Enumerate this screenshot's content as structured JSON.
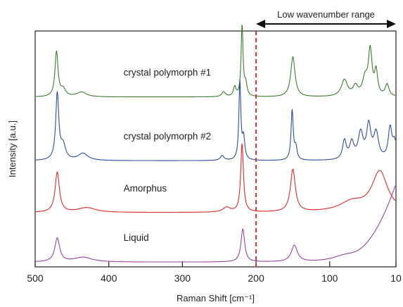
{
  "chart_data": {
    "type": "line",
    "xlabel": "Raman Shift [cm⁻¹]",
    "ylabel": "Intensity [a.u.]",
    "xlim": [
      500,
      10
    ],
    "x_reversed": true,
    "x_ticks": [
      500,
      400,
      300,
      200,
      100,
      10
    ],
    "y_tick_labels": false,
    "grid": false,
    "legend": "none",
    "annotations": [
      {
        "text": "Low wavenumber range",
        "range": [
          200,
          10
        ],
        "style": "double-arrow"
      }
    ],
    "reference_line": {
      "x": 200,
      "color": "#e02020",
      "style": "dashed"
    },
    "series": [
      {
        "name": "crystal polymorph #1",
        "color": "#3a7d2c",
        "baseline": 0.72,
        "peaks": [
          [
            471,
            0.19,
            2.5
          ],
          [
            462,
            0.03,
            4
          ],
          [
            437,
            0.02,
            8
          ],
          [
            244,
            0.02,
            3
          ],
          [
            229,
            0.04,
            2
          ],
          [
            219,
            0.3,
            1.6
          ],
          [
            214,
            0.05,
            2
          ],
          [
            150,
            0.17,
            3.5
          ],
          [
            80,
            0.07,
            5
          ],
          [
            65,
            0.04,
            4
          ],
          [
            52,
            0.07,
            4
          ],
          [
            45,
            0.19,
            3
          ],
          [
            37,
            0.1,
            2.5
          ],
          [
            22,
            0.05,
            3
          ]
        ]
      },
      {
        "name": "crystal polymorph #2",
        "color": "#2c4d9a",
        "baseline": 0.45,
        "peaks": [
          [
            470,
            0.28,
            2.5
          ],
          [
            462,
            0.06,
            4
          ],
          [
            435,
            0.03,
            8
          ],
          [
            246,
            0.02,
            3
          ],
          [
            222,
            0.33,
            1.6
          ],
          [
            217,
            0.09,
            2
          ],
          [
            151,
            0.21,
            1.8
          ],
          [
            146,
            0.05,
            2
          ],
          [
            80,
            0.08,
            3
          ],
          [
            70,
            0.07,
            3.5
          ],
          [
            58,
            0.11,
            4
          ],
          [
            47,
            0.14,
            3.5
          ],
          [
            37,
            0.11,
            4
          ],
          [
            18,
            0.13,
            3
          ],
          [
            12,
            0.07,
            3
          ]
        ]
      },
      {
        "name": "Amorphus",
        "color": "#e02a2a",
        "baseline": 0.23,
        "peaks": [
          [
            470,
            0.17,
            3.5
          ],
          [
            430,
            0.02,
            15
          ],
          [
            240,
            0.02,
            6
          ],
          [
            219,
            0.29,
            2.2
          ],
          [
            150,
            0.18,
            4
          ],
          [
            70,
            0.04,
            20
          ],
          [
            32,
            0.17,
            13
          ]
        ]
      },
      {
        "name": "Liquid",
        "color": "#9b42a3",
        "baseline": 0.02,
        "peaks": [
          [
            470,
            0.1,
            4
          ],
          [
            435,
            0.02,
            15
          ],
          [
            218,
            0.14,
            3
          ],
          [
            148,
            0.07,
            5
          ],
          [
            80,
            0.03,
            20
          ]
        ],
        "rise": {
          "from": 90,
          "to": 10,
          "height": 0.33
        }
      }
    ]
  }
}
